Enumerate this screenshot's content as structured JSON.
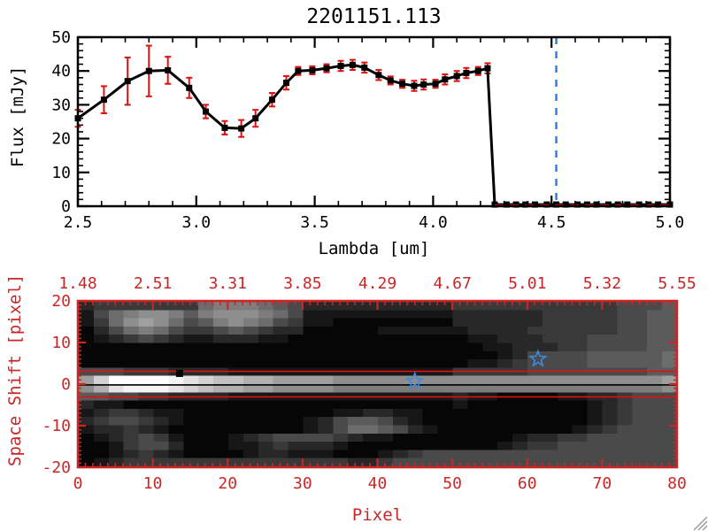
{
  "title": "2201151.113",
  "colors": {
    "frame_black": "#000000",
    "axis_red": "#cb2626",
    "error_red": "#dd1111",
    "dashed_red": "#e01010",
    "dashed_blue": "#2e82d4",
    "star_blue": "#3b8be0",
    "grip_gray": "#999999"
  },
  "chart_data": [
    {
      "type": "line",
      "title": "2201151.113",
      "xlabel": "Lambda [um]",
      "ylabel": "Flux [mJy]",
      "xlim": [
        2.5,
        5.0
      ],
      "ylim": [
        0,
        50
      ],
      "xticks": [
        2.5,
        3.0,
        3.5,
        4.0,
        4.5,
        5.0
      ],
      "xtick_labels": [
        "2.5",
        "3.0",
        "3.5",
        "4.0",
        "4.5",
        "5.0"
      ],
      "xminor_step": 0.1,
      "yticks": [
        0,
        10,
        20,
        30,
        40,
        50
      ],
      "ytick_labels": [
        "0",
        "10",
        "20",
        "30",
        "40",
        "50"
      ],
      "yminor_step": 2,
      "grid": false,
      "series": [
        {
          "name": "spectrum",
          "marker": "square",
          "x": [
            2.5,
            2.61,
            2.71,
            2.8,
            2.88,
            2.97,
            3.04,
            3.12,
            3.19,
            3.25,
            3.32,
            3.38,
            3.43,
            3.49,
            3.55,
            3.61,
            3.66,
            3.71,
            3.77,
            3.82,
            3.87,
            3.92,
            3.96,
            4.01,
            4.05,
            4.1,
            4.14,
            4.19,
            4.23,
            4.26,
            4.31,
            4.35,
            4.39,
            4.43,
            4.48,
            4.52,
            4.56,
            4.61,
            4.65,
            4.69,
            4.74,
            4.78,
            4.82,
            4.87,
            4.91,
            4.95,
            5.0
          ],
          "y": [
            26,
            31.5,
            37,
            40,
            40.2,
            35,
            28,
            23.2,
            23,
            26,
            31.5,
            36.5,
            40,
            40.2,
            40.8,
            41.5,
            41.8,
            41,
            38.8,
            37.2,
            36.2,
            35.6,
            36,
            36.2,
            37.5,
            38.5,
            39.4,
            40,
            40.8,
            0.5,
            0.5,
            0.5,
            0.5,
            0.5,
            0.5,
            0.5,
            0.5,
            0.5,
            0.5,
            0.5,
            0.5,
            0.5,
            0.5,
            0.5,
            0.5,
            0.5,
            0.5
          ],
          "yerr": [
            2.5,
            4,
            7,
            7.5,
            4,
            3,
            2,
            2,
            2.5,
            2.5,
            2,
            2,
            1.2,
            1.2,
            1.2,
            1.5,
            1.5,
            1.5,
            1.5,
            1.2,
            1.2,
            1.5,
            1.5,
            1.2,
            1.5,
            1.5,
            1.5,
            1.2,
            1.5,
            0,
            0,
            0,
            0,
            0,
            0,
            0,
            0,
            0,
            0,
            0,
            0,
            0,
            0,
            0,
            0,
            0,
            0
          ]
        }
      ],
      "annotations": {
        "vline_dashed_blue_x": 4.52,
        "hline_dashed_red": {
          "y": 0.3,
          "x0": 4.26,
          "x1": 5.0
        }
      }
    },
    {
      "type": "heatmap",
      "xlabel": "Pixel",
      "ylabel": "Space Shift [pixel]",
      "xlim": [
        0,
        80
      ],
      "ylim": [
        -20,
        20
      ],
      "xticks": [
        0,
        10,
        20,
        30,
        40,
        50,
        60,
        70,
        80
      ],
      "xtick_labels": [
        "0",
        "10",
        "20",
        "30",
        "40",
        "50",
        "60",
        "70",
        "80"
      ],
      "xminor_step": 1,
      "yticks": [
        -20,
        -10,
        0,
        10,
        20
      ],
      "ytick_labels": [
        "-20",
        "-10",
        "0",
        "10",
        "20"
      ],
      "yminor_step": 1,
      "top_axis_labels": [
        "1.48",
        "2.51",
        "3.31",
        "3.85",
        "4.29",
        "4.67",
        "5.01",
        "5.32",
        "5.55"
      ],
      "grid_rows_hex": [
        "2333333367776542222222222333333333334445",
        "1467887578887641111111111222222333334455",
        "1368986457876431100000000222222333334455",
        "0246764334543220000011111122223333334455",
        "0123432112221100000000000011222333444455",
        "0000000000000000000000000001122233444455",
        "0000000000000000000000000000124444555556",
        "0000000000000000000000000011234444555556",
        "4443332222111111111111111333334444444455",
        "9CFFFFEDCBBAA999988888888888888888888889",
        "8ADEEEDCBAA99888877777777777777777777778",
        "5544332222111111111111111211000011223444",
        "2110000000000000000000000100000000123444",
        "1233211000000000011221100000000000123444",
        "2344321000000001245542100000000000123444",
        "1223210000000001246654210000000001234444",
        "0123431000123444432110000000012233444444",
        "0013442000112322210000000000123344444444",
        "0012321000012211100012344444444444444444",
        "0123333333333333332234444444444444444444"
      ],
      "overlays": {
        "red_hlines_y": [
          3.1,
          -3.1
        ],
        "black_hline_y": -0.2,
        "black_square_marker": {
          "x": 13.5,
          "y": 2.6
        },
        "stars": [
          {
            "x": 45.0,
            "y": 0.7
          },
          {
            "x": 61.5,
            "y": 6.1
          }
        ]
      }
    }
  ]
}
